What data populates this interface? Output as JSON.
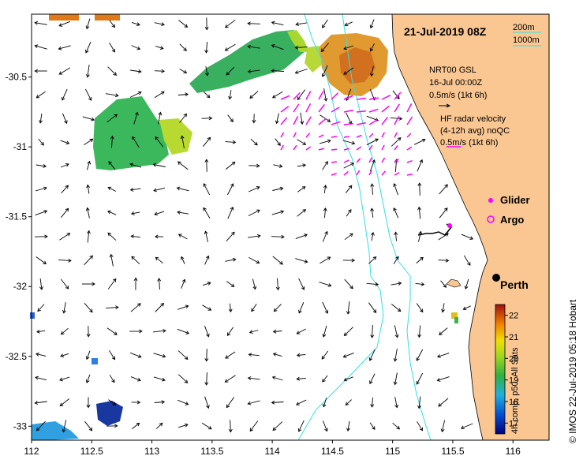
{
  "title": "21-Jul-2019 08Z",
  "isobath_legend": [
    "200m",
    "1000m"
  ],
  "nrt": {
    "line1": "NRT00 GSL",
    "line2": "16-Jul 00:00Z",
    "line3": "0.5m/s (1kt 6h)"
  },
  "radar": {
    "line1": "HF radar velocity",
    "line2": "(4-12h avg) noQC",
    "line3": "0.5m/s (1kt 6h)"
  },
  "markers": {
    "glider": "Glider",
    "argo": "Argo",
    "city": "Perth"
  },
  "colorbar": {
    "ticks": [
      "22",
      "21",
      "20",
      "19",
      "18",
      "17"
    ],
    "label": "4h comp, p50, All Sats",
    "min": 16.5,
    "max": 22.5
  },
  "credit": "© IMOS 22-Jul-2019 05:18 Hobart",
  "axes": {
    "x_ticks": [
      "112",
      "112.5",
      "113",
      "113.5",
      "114",
      "114.5",
      "115",
      "115.5",
      "116"
    ],
    "y_ticks": [
      "-30.5",
      "-31",
      "-31.5",
      "-32",
      "-32.5",
      "-33"
    ],
    "x_range": [
      112,
      116.3
    ],
    "y_range": [
      -33.1,
      -30.05
    ]
  },
  "colors": {
    "land": "#fac792",
    "isobath": "#30e0e8",
    "radar": "#ff00ff",
    "arrow": "#000000"
  }
}
